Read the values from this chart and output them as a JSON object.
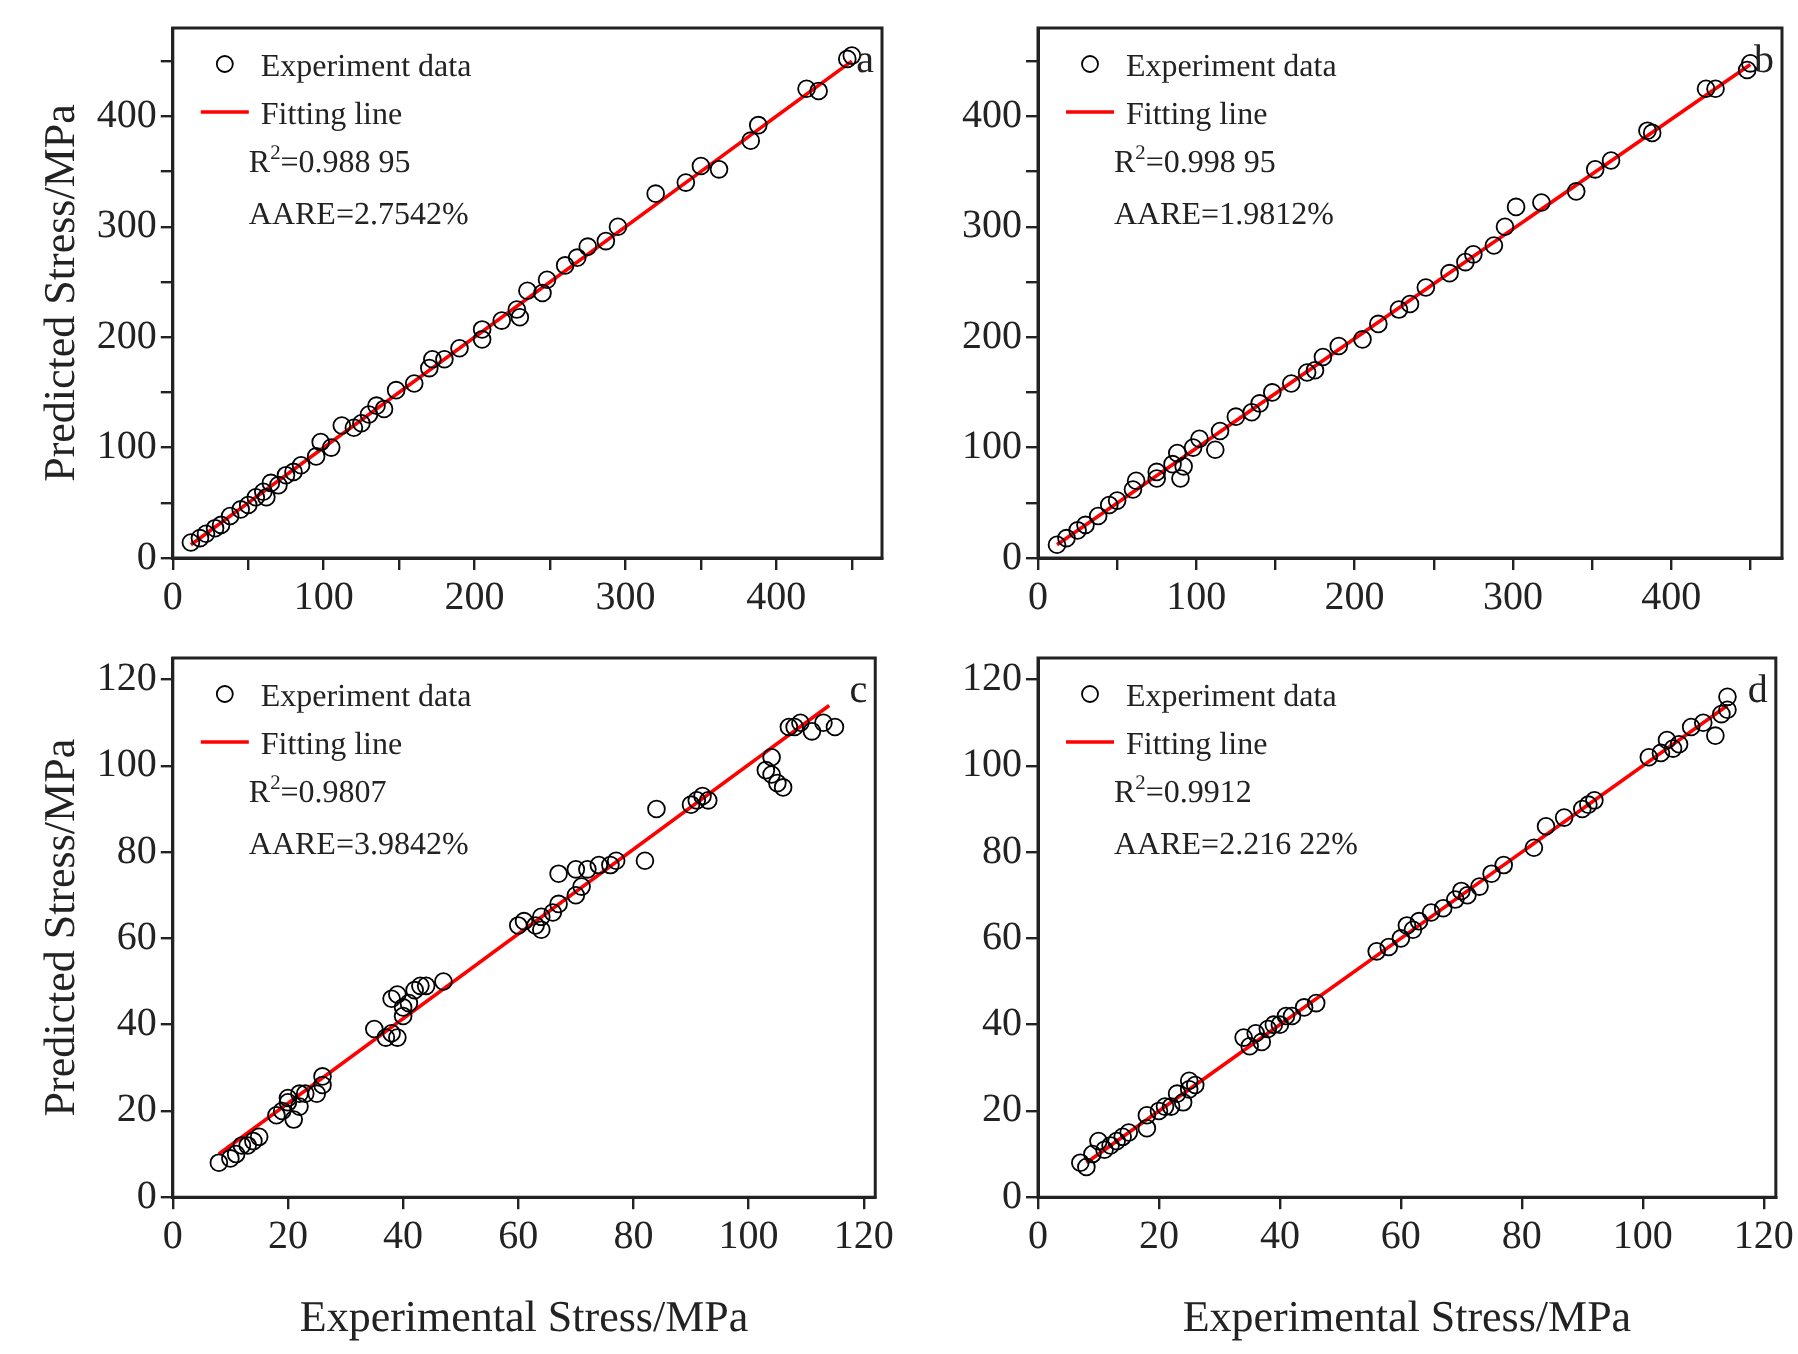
{
  "chart_data": [
    {
      "type": "scatter",
      "title": "a",
      "ylabel": "Predicted Stress/MPa",
      "legend": "top left",
      "grid": false,
      "xlim": [
        0,
        470
      ],
      "ylim": [
        0,
        480
      ],
      "xticks": [
        0,
        {
          "value": 50,
          "label": null
        },
        100,
        {
          "value": 150,
          "label": null
        },
        200,
        {
          "value": 250,
          "label": null
        },
        300,
        {
          "value": 350,
          "label": null
        },
        400,
        {
          "value": 450,
          "label": null
        }
      ],
      "yticks": [
        0,
        {
          "value": 50,
          "label": null
        },
        100,
        {
          "value": 150,
          "label": null
        },
        200,
        {
          "value": 250,
          "label": null
        },
        300,
        {
          "value": 350,
          "label": null
        },
        400,
        {
          "value": 450,
          "label": null
        }
      ],
      "annotations": [
        "R$^{2}$=0.988 95",
        "AARE=2.7542%"
      ],
      "series": [
        {
          "name": "Experiment data",
          "type": "scatter",
          "marker": "circle",
          "color": "#000000",
          "x": [
            12,
            18,
            22,
            28,
            32,
            38,
            45,
            50,
            55,
            60,
            62,
            65,
            70,
            75,
            80,
            85,
            95,
            98,
            105,
            112,
            120,
            125,
            130,
            135,
            140,
            148,
            160,
            170,
            172,
            180,
            190,
            205,
            205,
            218,
            228,
            230,
            235,
            245,
            248,
            260,
            268,
            275,
            287,
            295,
            320,
            340,
            350,
            362,
            383,
            388,
            420,
            428,
            447,
            450
          ],
          "values": [
            14,
            18,
            22,
            27,
            30,
            38,
            44,
            48,
            55,
            60,
            55,
            68,
            66,
            75,
            78,
            84,
            92,
            105,
            100,
            120,
            118,
            122,
            130,
            138,
            135,
            152,
            158,
            172,
            180,
            180,
            190,
            198,
            207,
            215,
            225,
            218,
            242,
            240,
            252,
            265,
            272,
            282,
            287,
            300,
            330,
            340,
            355,
            352,
            378,
            392,
            425,
            423,
            452,
            455
          ]
        },
        {
          "name": "Fitting line",
          "type": "line",
          "marker": "none",
          "color": "#ff0000",
          "x": [
            12,
            450
          ],
          "values": [
            12,
            450
          ]
        }
      ]
    },
    {
      "type": "scatter",
      "title": "b",
      "legend": "top left",
      "grid": false,
      "xlim": [
        0,
        470
      ],
      "ylim": [
        0,
        480
      ],
      "xticks": [
        0,
        {
          "value": 50,
          "label": null
        },
        100,
        {
          "value": 150,
          "label": null
        },
        200,
        {
          "value": 250,
          "label": null
        },
        300,
        {
          "value": 350,
          "label": null
        },
        400,
        {
          "value": 450,
          "label": null
        }
      ],
      "yticks": [
        0,
        {
          "value": 50,
          "label": null
        },
        100,
        {
          "value": 150,
          "label": null
        },
        200,
        {
          "value": 250,
          "label": null
        },
        300,
        {
          "value": 350,
          "label": null
        },
        400,
        {
          "value": 450,
          "label": null
        }
      ],
      "annotations": [
        "R$^{2}$=0.998 95",
        "AARE=1.9812%"
      ],
      "series": [
        {
          "name": "Experiment data",
          "type": "scatter",
          "marker": "circle",
          "color": "#000000",
          "x": [
            12,
            18,
            25,
            30,
            38,
            45,
            50,
            60,
            62,
            75,
            75,
            85,
            88,
            90,
            92,
            98,
            102,
            112,
            115,
            125,
            135,
            140,
            148,
            160,
            170,
            175,
            180,
            190,
            205,
            215,
            228,
            235,
            245,
            260,
            270,
            275,
            288,
            295,
            302,
            318,
            340,
            352,
            362,
            385,
            388,
            422,
            428,
            448,
            450
          ],
          "values": [
            12,
            18,
            25,
            30,
            38,
            48,
            52,
            62,
            70,
            72,
            78,
            85,
            95,
            72,
            83,
            100,
            108,
            98,
            115,
            128,
            132,
            140,
            150,
            158,
            168,
            170,
            182,
            192,
            198,
            212,
            225,
            230,
            245,
            258,
            268,
            275,
            283,
            300,
            318,
            322,
            332,
            352,
            360,
            387,
            385,
            425,
            425,
            442,
            448
          ]
        },
        {
          "name": "Fitting line",
          "type": "line",
          "marker": "none",
          "color": "#ff0000",
          "x": [
            12,
            450
          ],
          "values": [
            12,
            447
          ]
        }
      ]
    },
    {
      "type": "scatter",
      "title": "c",
      "xlabel": "Experimental Stress/MPa",
      "ylabel": "Predicted Stress/MPa",
      "legend": "top left",
      "grid": false,
      "xlim": [
        0,
        122
      ],
      "ylim": [
        0,
        125
      ],
      "xticks": [
        0,
        20,
        40,
        60,
        80,
        100,
        120
      ],
      "yticks": [
        0,
        20,
        40,
        60,
        80,
        100,
        120
      ],
      "annotations": [
        "R$^{2}$=0.9807",
        "AARE=3.9842%"
      ],
      "series": [
        {
          "name": "Experiment data",
          "type": "scatter",
          "marker": "circle",
          "color": "#000000",
          "x": [
            8,
            10,
            11,
            12,
            13,
            14,
            15,
            18,
            19,
            20,
            20,
            21,
            22,
            22,
            23,
            25,
            26,
            26,
            35,
            37,
            38,
            39,
            38,
            39,
            40,
            40,
            41,
            42,
            43,
            44,
            47,
            60,
            61,
            63,
            64,
            64,
            66,
            67,
            67,
            70,
            70,
            71,
            72,
            74,
            76,
            77,
            82,
            84,
            90,
            91,
            92,
            93,
            103,
            104,
            104,
            105,
            106,
            107,
            108,
            109,
            111,
            113,
            115
          ],
          "values": [
            8,
            9,
            10,
            12,
            12,
            13,
            14,
            19,
            20,
            22,
            23,
            18,
            21,
            24,
            24,
            24,
            26,
            28,
            39,
            37,
            38,
            37,
            46,
            47,
            42,
            44,
            45,
            48,
            49,
            49,
            50,
            63,
            64,
            63,
            62,
            65,
            66,
            68,
            75,
            70,
            76,
            72,
            76,
            77,
            77,
            78,
            78,
            90,
            91,
            92,
            93,
            92,
            99,
            98,
            102,
            96,
            95,
            109,
            109,
            110,
            108,
            110,
            109
          ]
        },
        {
          "name": "Fitting line",
          "type": "line",
          "marker": "none",
          "color": "#ff0000",
          "x": [
            8,
            114
          ],
          "values": [
            10,
            114
          ]
        }
      ]
    },
    {
      "type": "scatter",
      "title": "d",
      "xlabel": "Experimental Stress/MPa",
      "legend": "top left",
      "grid": false,
      "xlim": [
        0,
        122
      ],
      "ylim": [
        0,
        125
      ],
      "xticks": [
        0,
        20,
        40,
        60,
        80,
        100,
        120
      ],
      "yticks": [
        0,
        20,
        40,
        60,
        80,
        100,
        120
      ],
      "annotations": [
        "R$^{2}$=0.9912",
        "AARE=2.216 22%"
      ],
      "series": [
        {
          "name": "Experiment data",
          "type": "scatter",
          "marker": "circle",
          "color": "#000000",
          "x": [
            7,
            8,
            9,
            10,
            11,
            12,
            13,
            14,
            15,
            18,
            18,
            20,
            21,
            22,
            23,
            24,
            25,
            25,
            26,
            34,
            35,
            36,
            37,
            38,
            39,
            40,
            41,
            42,
            44,
            46,
            56,
            58,
            60,
            61,
            62,
            63,
            65,
            67,
            69,
            70,
            71,
            73,
            75,
            77,
            82,
            84,
            87,
            90,
            91,
            92,
            101,
            103,
            104,
            105,
            106,
            108,
            110,
            112,
            113,
            114,
            114
          ],
          "values": [
            8,
            7,
            10,
            13,
            11,
            12,
            13,
            14,
            15,
            16,
            19,
            20,
            21,
            21,
            24,
            22,
            25,
            27,
            26,
            37,
            35,
            38,
            36,
            39,
            40,
            40,
            42,
            42,
            44,
            45,
            57,
            58,
            60,
            63,
            62,
            64,
            66,
            67,
            69,
            71,
            70,
            72,
            75,
            77,
            81,
            86,
            88,
            90,
            91,
            92,
            102,
            103,
            106,
            104,
            105,
            109,
            110,
            107,
            112,
            116,
            113
          ]
        },
        {
          "name": "Fitting line",
          "type": "line",
          "marker": "none",
          "color": "#ff0000",
          "x": [
            8,
            114
          ],
          "values": [
            8,
            114
          ]
        }
      ]
    }
  ]
}
